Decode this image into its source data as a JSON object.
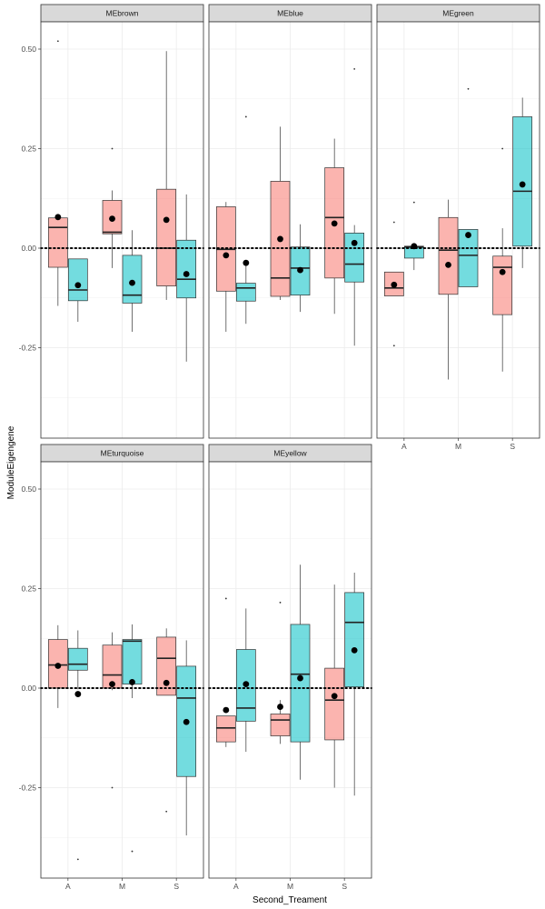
{
  "chart_data": {
    "type": "box",
    "facets": [
      "MEbrown",
      "MEblue",
      "MEgreen",
      "MEturquoise",
      "MEyellow"
    ],
    "categories": [
      "A",
      "M",
      "S"
    ],
    "xlabel": "Second_Treament",
    "ylabel": "ModuleEigengene",
    "y_ticks": [
      0.5,
      0.25,
      0.0,
      -0.25
    ],
    "y_tick_labels": [
      "0.50",
      "0.25",
      "0.00",
      "-0.25"
    ],
    "ylim": [
      -0.48,
      0.56
    ],
    "reference_line": 0,
    "groups": [
      {
        "name": "",
        "color": "#F8766D"
      },
      {
        "name": "",
        "color": "#00BFC4"
      }
    ],
    "panels": [
      {
        "facet": "MEbrown",
        "boxes": [
          {
            "category": "A",
            "group": 0,
            "q1": -0.048,
            "median": 0.052,
            "q3": 0.076,
            "low": -0.145,
            "high": 0.082,
            "mean": 0.078,
            "outliers": [
              0.52
            ]
          },
          {
            "category": "A",
            "group": 1,
            "q1": -0.132,
            "median": -0.105,
            "q3": -0.027,
            "low": -0.185,
            "high": -0.027,
            "mean": -0.093,
            "outliers": []
          },
          {
            "category": "M",
            "group": 0,
            "q1": 0.036,
            "median": 0.04,
            "q3": 0.12,
            "low": -0.05,
            "high": 0.145,
            "mean": 0.074,
            "outliers": [
              0.25
            ]
          },
          {
            "category": "M",
            "group": 1,
            "q1": -0.138,
            "median": -0.118,
            "q3": -0.018,
            "low": -0.21,
            "high": 0.045,
            "mean": -0.087,
            "outliers": []
          },
          {
            "category": "S",
            "group": 0,
            "q1": -0.095,
            "median": 0.0,
            "q3": 0.148,
            "low": -0.13,
            "high": 0.495,
            "mean": 0.071,
            "outliers": []
          },
          {
            "category": "S",
            "group": 1,
            "q1": -0.125,
            "median": -0.078,
            "q3": 0.02,
            "low": -0.285,
            "high": 0.135,
            "mean": -0.065,
            "outliers": []
          }
        ]
      },
      {
        "facet": "MEblue",
        "boxes": [
          {
            "category": "A",
            "group": 0,
            "q1": -0.108,
            "median": -0.003,
            "q3": 0.104,
            "low": -0.21,
            "high": 0.116,
            "mean": -0.018,
            "outliers": []
          },
          {
            "category": "A",
            "group": 1,
            "q1": -0.133,
            "median": -0.1,
            "q3": -0.088,
            "low": -0.19,
            "high": -0.035,
            "mean": -0.037,
            "outliers": [
              0.33
            ]
          },
          {
            "category": "M",
            "group": 0,
            "q1": -0.121,
            "median": -0.075,
            "q3": 0.168,
            "low": -0.13,
            "high": 0.305,
            "mean": 0.023,
            "outliers": []
          },
          {
            "category": "M",
            "group": 1,
            "q1": -0.118,
            "median": -0.05,
            "q3": 0.003,
            "low": -0.16,
            "high": 0.06,
            "mean": -0.055,
            "outliers": []
          },
          {
            "category": "S",
            "group": 0,
            "q1": -0.075,
            "median": 0.077,
            "q3": 0.202,
            "low": -0.165,
            "high": 0.275,
            "mean": 0.062,
            "outliers": []
          },
          {
            "category": "S",
            "group": 1,
            "q1": -0.085,
            "median": -0.04,
            "q3": 0.038,
            "low": -0.245,
            "high": 0.058,
            "mean": 0.013,
            "outliers": [
              0.45
            ]
          }
        ]
      },
      {
        "facet": "MEgreen",
        "boxes": [
          {
            "category": "A",
            "group": 0,
            "q1": -0.12,
            "median": -0.1,
            "q3": -0.06,
            "low": -0.12,
            "high": -0.06,
            "mean": -0.092,
            "outliers": [
              0.065,
              -0.245
            ]
          },
          {
            "category": "A",
            "group": 1,
            "q1": -0.025,
            "median": 0.003,
            "q3": 0.005,
            "low": -0.055,
            "high": 0.006,
            "mean": 0.005,
            "outliers": [
              0.115
            ]
          },
          {
            "category": "M",
            "group": 0,
            "q1": -0.116,
            "median": -0.005,
            "q3": 0.077,
            "low": -0.33,
            "high": 0.122,
            "mean": -0.042,
            "outliers": []
          },
          {
            "category": "M",
            "group": 1,
            "q1": -0.097,
            "median": -0.018,
            "q3": 0.047,
            "low": -0.097,
            "high": 0.047,
            "mean": 0.033,
            "outliers": [
              0.4
            ]
          },
          {
            "category": "S",
            "group": 0,
            "q1": -0.167,
            "median": -0.048,
            "q3": -0.02,
            "low": -0.31,
            "high": 0.05,
            "mean": -0.06,
            "outliers": [
              0.25
            ]
          },
          {
            "category": "S",
            "group": 1,
            "q1": 0.005,
            "median": 0.143,
            "q3": 0.33,
            "low": -0.05,
            "high": 0.378,
            "mean": 0.16,
            "outliers": []
          }
        ]
      },
      {
        "facet": "MEturquoise",
        "boxes": [
          {
            "category": "A",
            "group": 0,
            "q1": 0.0,
            "median": 0.058,
            "q3": 0.122,
            "low": -0.05,
            "high": 0.158,
            "mean": 0.056,
            "outliers": []
          },
          {
            "category": "A",
            "group": 1,
            "q1": 0.045,
            "median": 0.06,
            "q3": 0.1,
            "low": -0.003,
            "high": 0.145,
            "mean": -0.015,
            "outliers": [
              -0.43
            ]
          },
          {
            "category": "M",
            "group": 0,
            "q1": 0.0,
            "median": 0.033,
            "q3": 0.108,
            "low": -0.005,
            "high": 0.14,
            "mean": 0.01,
            "outliers": [
              -0.25
            ]
          },
          {
            "category": "M",
            "group": 1,
            "q1": 0.01,
            "median": 0.118,
            "q3": 0.122,
            "low": -0.025,
            "high": 0.16,
            "mean": 0.015,
            "outliers": [
              -0.41
            ]
          },
          {
            "category": "S",
            "group": 0,
            "q1": -0.018,
            "median": 0.075,
            "q3": 0.128,
            "low": -0.018,
            "high": 0.15,
            "mean": 0.013,
            "outliers": [
              -0.31
            ]
          },
          {
            "category": "S",
            "group": 1,
            "q1": -0.222,
            "median": -0.025,
            "q3": 0.055,
            "low": -0.37,
            "high": 0.12,
            "mean": -0.085,
            "outliers": []
          }
        ]
      },
      {
        "facet": "MEyellow",
        "boxes": [
          {
            "category": "A",
            "group": 0,
            "q1": -0.135,
            "median": -0.1,
            "q3": -0.07,
            "low": -0.148,
            "high": -0.07,
            "mean": -0.055,
            "outliers": [
              0.225
            ]
          },
          {
            "category": "A",
            "group": 1,
            "q1": -0.083,
            "median": -0.05,
            "q3": 0.097,
            "low": -0.16,
            "high": 0.2,
            "mean": 0.01,
            "outliers": []
          },
          {
            "category": "M",
            "group": 0,
            "q1": -0.12,
            "median": -0.08,
            "q3": -0.065,
            "low": -0.14,
            "high": -0.03,
            "mean": -0.047,
            "outliers": [
              0.215
            ]
          },
          {
            "category": "M",
            "group": 1,
            "q1": -0.135,
            "median": 0.035,
            "q3": 0.16,
            "low": -0.23,
            "high": 0.31,
            "mean": 0.025,
            "outliers": []
          },
          {
            "category": "S",
            "group": 0,
            "q1": -0.13,
            "median": -0.03,
            "q3": 0.05,
            "low": -0.25,
            "high": 0.26,
            "mean": -0.02,
            "outliers": []
          },
          {
            "category": "S",
            "group": 1,
            "q1": 0.003,
            "median": 0.165,
            "q3": 0.24,
            "low": -0.27,
            "high": 0.29,
            "mean": 0.095,
            "outliers": []
          }
        ]
      }
    ]
  }
}
